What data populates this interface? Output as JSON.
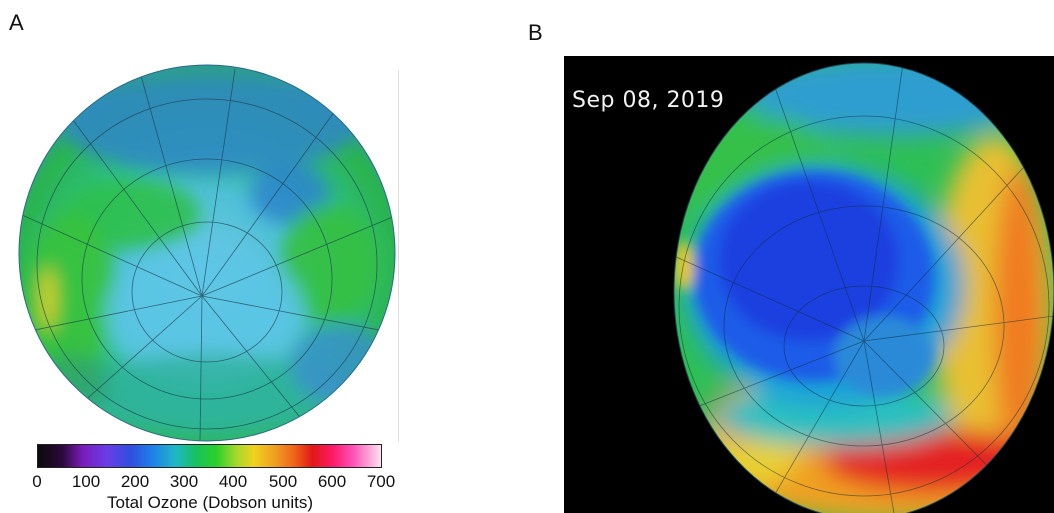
{
  "panels": {
    "a": {
      "label": "A"
    },
    "b": {
      "label": "B",
      "date": "Sep 08, 2019"
    }
  },
  "colorbar": {
    "title": "Total Ozone (Dobson units)",
    "ticks": [
      "0",
      "100",
      "200",
      "300",
      "400",
      "500",
      "600",
      "700"
    ],
    "range": [
      0,
      700
    ]
  }
}
